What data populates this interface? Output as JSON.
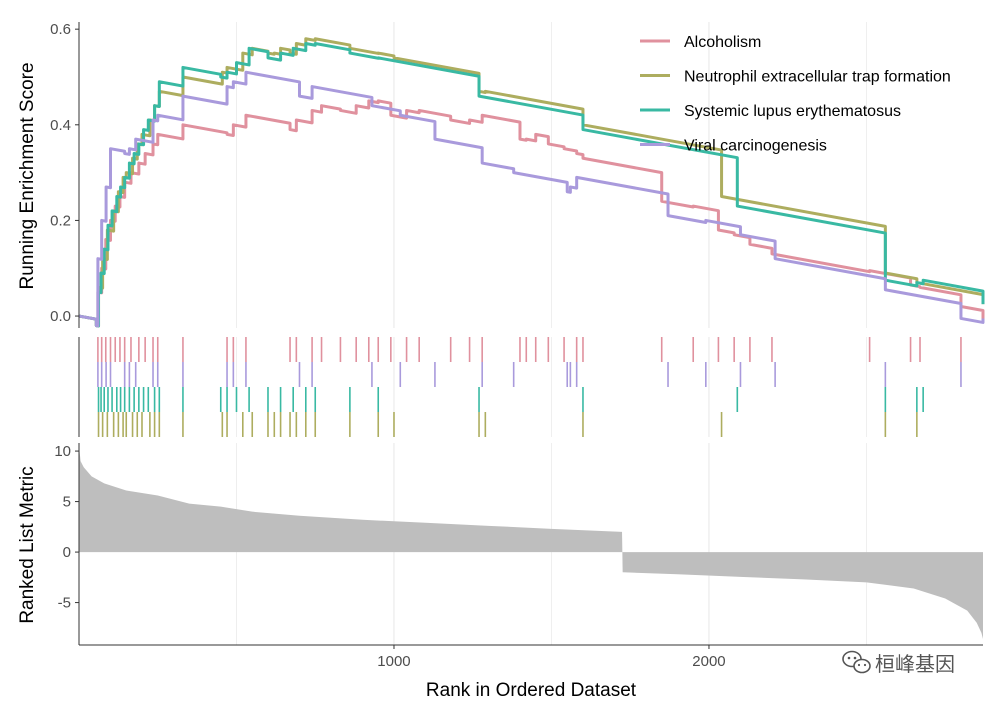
{
  "chart_data": {
    "type": "line",
    "title": "",
    "xlabel": "Rank in Ordered Dataset",
    "x_ticks": [
      1000,
      2000
    ],
    "xlim": [
      0,
      2870
    ],
    "panels": {
      "enrichment": {
        "ylabel": "Running Enrichment Score",
        "ylim": [
          -0.025,
          0.615
        ],
        "y_ticks": [
          "0.0",
          "0.2",
          "0.4",
          "0.6"
        ],
        "y_tick_values": [
          0,
          0.2,
          0.4,
          0.6
        ]
      },
      "metric": {
        "ylabel": "Ranked List Metric",
        "ylim": [
          -9.2,
          10.8
        ],
        "y_ticks": [
          "10",
          "5",
          "0",
          "-5"
        ],
        "y_tick_values": [
          10,
          5,
          0,
          -5
        ]
      }
    },
    "series": [
      {
        "name": "Alcoholism",
        "color": "#E0919E",
        "hits": [
          60,
          72,
          85,
          100,
          115,
          130,
          145,
          165,
          190,
          210,
          235,
          250,
          330,
          470,
          490,
          530,
          670,
          690,
          740,
          770,
          830,
          880,
          920,
          950,
          990,
          1040,
          1080,
          1180,
          1240,
          1280,
          1400,
          1420,
          1450,
          1490,
          1540,
          1580,
          1600,
          1850,
          1950,
          2030,
          2080,
          2130,
          2200,
          2510,
          2640,
          2670,
          2800
        ],
        "es": [
          [
            0,
            0
          ],
          [
            55,
            -0.02
          ],
          [
            60,
            0.05
          ],
          [
            72,
            0.1
          ],
          [
            85,
            0.16
          ],
          [
            100,
            0.2
          ],
          [
            115,
            0.23
          ],
          [
            130,
            0.25
          ],
          [
            145,
            0.28
          ],
          [
            165,
            0.3
          ],
          [
            190,
            0.32
          ],
          [
            210,
            0.34
          ],
          [
            235,
            0.36
          ],
          [
            250,
            0.38
          ],
          [
            330,
            0.4
          ],
          [
            470,
            0.38
          ],
          [
            490,
            0.4
          ],
          [
            530,
            0.42
          ],
          [
            670,
            0.39
          ],
          [
            690,
            0.41
          ],
          [
            740,
            0.43
          ],
          [
            770,
            0.44
          ],
          [
            830,
            0.43
          ],
          [
            880,
            0.44
          ],
          [
            920,
            0.45
          ],
          [
            950,
            0.45
          ],
          [
            990,
            0.42
          ],
          [
            1040,
            0.43
          ],
          [
            1080,
            0.43
          ],
          [
            1180,
            0.41
          ],
          [
            1240,
            0.41
          ],
          [
            1280,
            0.42
          ],
          [
            1400,
            0.37
          ],
          [
            1420,
            0.37
          ],
          [
            1450,
            0.38
          ],
          [
            1490,
            0.36
          ],
          [
            1540,
            0.35
          ],
          [
            1580,
            0.34
          ],
          [
            1600,
            0.33
          ],
          [
            1850,
            0.24
          ],
          [
            1950,
            0.23
          ],
          [
            2030,
            0.18
          ],
          [
            2080,
            0.17
          ],
          [
            2130,
            0.15
          ],
          [
            2200,
            0.13
          ],
          [
            2510,
            0.095
          ],
          [
            2640,
            0.065
          ],
          [
            2670,
            0.06
          ],
          [
            2800,
            0.02
          ],
          [
            2870,
            -0.005
          ]
        ]
      },
      {
        "name": "Neutrophil extracellular trap formation",
        "color": "#ADAD5F",
        "hits": [
          62,
          75,
          90,
          110,
          125,
          140,
          150,
          170,
          185,
          200,
          225,
          240,
          255,
          330,
          455,
          470,
          520,
          550,
          600,
          620,
          640,
          670,
          690,
          720,
          750,
          860,
          950,
          1000,
          1270,
          1290,
          1600,
          2040,
          2560,
          2660
        ],
        "es": [
          [
            0,
            0
          ],
          [
            55,
            -0.02
          ],
          [
            62,
            0.06
          ],
          [
            75,
            0.12
          ],
          [
            90,
            0.18
          ],
          [
            110,
            0.22
          ],
          [
            125,
            0.26
          ],
          [
            140,
            0.29
          ],
          [
            150,
            0.3
          ],
          [
            170,
            0.33
          ],
          [
            185,
            0.36
          ],
          [
            200,
            0.38
          ],
          [
            225,
            0.41
          ],
          [
            240,
            0.44
          ],
          [
            255,
            0.47
          ],
          [
            330,
            0.5
          ],
          [
            455,
            0.51
          ],
          [
            470,
            0.52
          ],
          [
            520,
            0.55
          ],
          [
            550,
            0.56
          ],
          [
            600,
            0.55
          ],
          [
            620,
            0.55
          ],
          [
            640,
            0.56
          ],
          [
            670,
            0.55
          ],
          [
            690,
            0.57
          ],
          [
            720,
            0.58
          ],
          [
            750,
            0.58
          ],
          [
            860,
            0.56
          ],
          [
            950,
            0.55
          ],
          [
            1000,
            0.54
          ],
          [
            1270,
            0.47
          ],
          [
            1290,
            0.47
          ],
          [
            1600,
            0.4
          ],
          [
            2040,
            0.25
          ],
          [
            2560,
            0.09
          ],
          [
            2660,
            0.07
          ],
          [
            2870,
            0.025
          ]
        ]
      },
      {
        "name": "Systemic lupus erythematosus",
        "color": "#39B9A3",
        "hits": [
          62,
          70,
          80,
          92,
          105,
          120,
          132,
          145,
          160,
          175,
          190,
          205,
          220,
          240,
          255,
          330,
          450,
          470,
          500,
          540,
          600,
          640,
          680,
          720,
          750,
          860,
          950,
          1270,
          1600,
          2090,
          2560,
          2660,
          2680
        ],
        "es": [
          [
            0,
            0
          ],
          [
            55,
            -0.02
          ],
          [
            62,
            0.05
          ],
          [
            70,
            0.09
          ],
          [
            80,
            0.14
          ],
          [
            92,
            0.19
          ],
          [
            105,
            0.22
          ],
          [
            120,
            0.25
          ],
          [
            132,
            0.27
          ],
          [
            145,
            0.29
          ],
          [
            160,
            0.32
          ],
          [
            175,
            0.34
          ],
          [
            190,
            0.36
          ],
          [
            205,
            0.39
          ],
          [
            220,
            0.41
          ],
          [
            240,
            0.44
          ],
          [
            255,
            0.49
          ],
          [
            330,
            0.52
          ],
          [
            450,
            0.5
          ],
          [
            470,
            0.51
          ],
          [
            500,
            0.53
          ],
          [
            540,
            0.56
          ],
          [
            600,
            0.54
          ],
          [
            640,
            0.55
          ],
          [
            680,
            0.56
          ],
          [
            720,
            0.57
          ],
          [
            750,
            0.57
          ],
          [
            860,
            0.55
          ],
          [
            950,
            0.54
          ],
          [
            1270,
            0.46
          ],
          [
            1600,
            0.39
          ],
          [
            2090,
            0.23
          ],
          [
            2560,
            0.075
          ],
          [
            2660,
            0.07
          ],
          [
            2680,
            0.075
          ],
          [
            2870,
            0.025
          ]
        ]
      },
      {
        "name": "Viral carcinogenesis",
        "color": "#A99ADC",
        "hits": [
          60,
          72,
          86,
          100,
          145,
          160,
          180,
          235,
          250,
          330,
          470,
          490,
          530,
          700,
          740,
          930,
          1020,
          1130,
          1280,
          1380,
          1550,
          1560,
          1580,
          1870,
          1990,
          2100,
          2210,
          2560,
          2800
        ],
        "es": [
          [
            0,
            0
          ],
          [
            55,
            -0.02
          ],
          [
            60,
            0.12
          ],
          [
            72,
            0.2
          ],
          [
            86,
            0.27
          ],
          [
            100,
            0.35
          ],
          [
            145,
            0.34
          ],
          [
            160,
            0.35
          ],
          [
            180,
            0.37
          ],
          [
            235,
            0.41
          ],
          [
            250,
            0.42
          ],
          [
            330,
            0.46
          ],
          [
            470,
            0.48
          ],
          [
            490,
            0.49
          ],
          [
            530,
            0.51
          ],
          [
            700,
            0.46
          ],
          [
            740,
            0.48
          ],
          [
            930,
            0.44
          ],
          [
            1020,
            0.42
          ],
          [
            1130,
            0.37
          ],
          [
            1280,
            0.32
          ],
          [
            1380,
            0.3
          ],
          [
            1550,
            0.26
          ],
          [
            1560,
            0.27
          ],
          [
            1580,
            0.29
          ],
          [
            1870,
            0.21
          ],
          [
            1990,
            0.2
          ],
          [
            2100,
            0.17
          ],
          [
            2210,
            0.12
          ],
          [
            2560,
            0.055
          ],
          [
            2800,
            -0.005
          ],
          [
            2870,
            -0.005
          ]
        ]
      }
    ],
    "ranked_metric": {
      "n": 2870,
      "zero_cross": 1725,
      "description": "sorted descending ranked list metric",
      "points": [
        [
          0,
          10.5
        ],
        [
          5,
          9.0
        ],
        [
          15,
          8.4
        ],
        [
          40,
          7.5
        ],
        [
          80,
          6.8
        ],
        [
          150,
          6.1
        ],
        [
          250,
          5.6
        ],
        [
          350,
          4.8
        ],
        [
          450,
          4.5
        ],
        [
          550,
          4.0
        ],
        [
          700,
          3.6
        ],
        [
          900,
          3.2
        ],
        [
          1100,
          2.9
        ],
        [
          1300,
          2.6
        ],
        [
          1500,
          2.3
        ],
        [
          1724,
          2.0
        ],
        [
          1726,
          -2.0
        ],
        [
          1900,
          -2.2
        ],
        [
          2100,
          -2.45
        ],
        [
          2300,
          -2.7
        ],
        [
          2500,
          -3.0
        ],
        [
          2650,
          -3.6
        ],
        [
          2750,
          -4.6
        ],
        [
          2820,
          -5.8
        ],
        [
          2850,
          -7.0
        ],
        [
          2865,
          -8.0
        ],
        [
          2870,
          -8.6
        ]
      ]
    }
  },
  "watermark": {
    "text": "桓峰基因",
    "icon": "wechat-icon"
  }
}
